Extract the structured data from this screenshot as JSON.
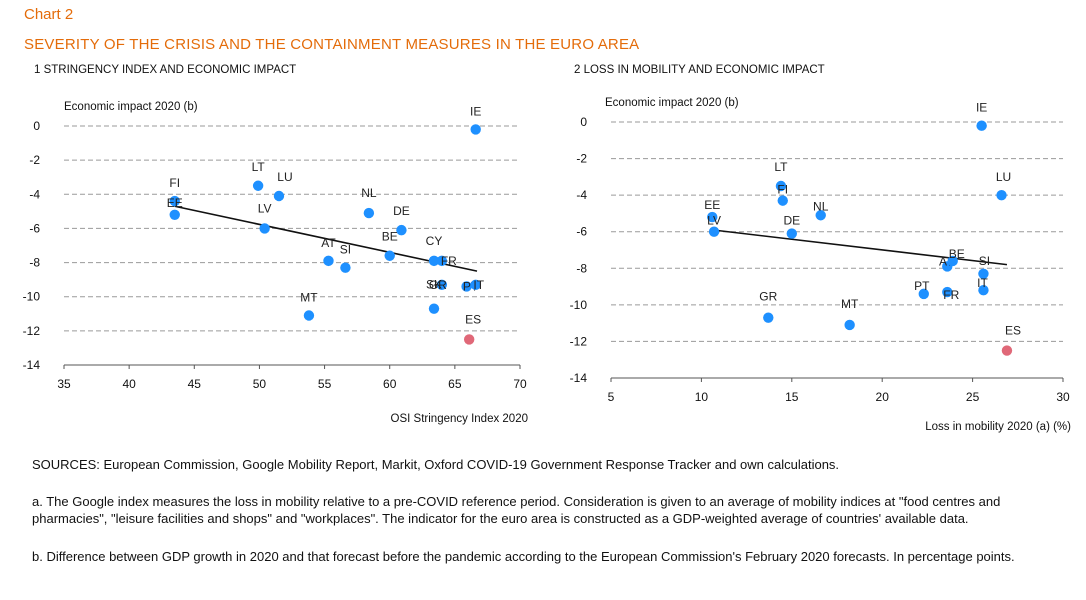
{
  "header": {
    "chart_label": "Chart 2",
    "title": "SEVERITY  OF THE  CRISIS  AND THE CONTAINMENT  MEASURES  IN THE EURO  AREA"
  },
  "colors": {
    "title": "#e46c0a",
    "point": "#1e90ff",
    "highlight": "#e06878",
    "line": "#111111",
    "grid": "#9a9a9a"
  },
  "chart_data": [
    {
      "type": "scatter",
      "panel_title": "1  STRINGENCY INDEX AND ECONOMIC IMPACT",
      "ylabel": "Economic impact 2020  (b)",
      "xlabel": "OSI Stringency  Index 2020",
      "xlim": [
        35,
        70
      ],
      "ylim": [
        -14,
        0
      ],
      "xticks": [
        35,
        40,
        45,
        50,
        55,
        60,
        65,
        70
      ],
      "yticks": [
        0,
        -2,
        -4,
        -6,
        -8,
        -10,
        -12,
        -14
      ],
      "grid": "horizontal-dashed",
      "trendline": {
        "from": [
          43.5,
          -4.7
        ],
        "to": [
          66.7,
          -8.5
        ]
      },
      "points": [
        {
          "label": "IE",
          "x": 66.6,
          "y": -0.2
        },
        {
          "label": "FI",
          "x": 43.5,
          "y": -4.4
        },
        {
          "label": "EE",
          "x": 43.5,
          "y": -5.2
        },
        {
          "label": "LT",
          "x": 49.9,
          "y": -3.5
        },
        {
          "label": "LU",
          "x": 51.5,
          "y": -4.1
        },
        {
          "label": "LV",
          "x": 50.4,
          "y": -6.0
        },
        {
          "label": "NL",
          "x": 58.4,
          "y": -5.1
        },
        {
          "label": "DE",
          "x": 60.9,
          "y": -6.1
        },
        {
          "label": "BE",
          "x": 60.0,
          "y": -7.6
        },
        {
          "label": "AT",
          "x": 55.3,
          "y": -7.9
        },
        {
          "label": "SI",
          "x": 56.6,
          "y": -8.3
        },
        {
          "label": "CY",
          "x": 63.4,
          "y": -7.9
        },
        {
          "label": "FR",
          "x": 64.0,
          "y": -7.9
        },
        {
          "label": "PT",
          "x": 65.9,
          "y": -9.4
        },
        {
          "label": "IT",
          "x": 66.6,
          "y": -9.3
        },
        {
          "label": "GR",
          "x": 64.0,
          "y": -9.3
        },
        {
          "label": "MT",
          "x": 53.8,
          "y": -11.1
        },
        {
          "label": "SK",
          "x": 63.4,
          "y": -10.7
        },
        {
          "label": "ES",
          "x": 66.1,
          "y": -12.5,
          "highlight": true
        }
      ]
    },
    {
      "type": "scatter",
      "panel_title": "2  LOSS IN MOBILITY AND ECONOMIC IMPACT",
      "ylabel": "Economic impact 2020  (b)",
      "xlabel": "Loss in mobility  2020  (a) (%)",
      "xlim": [
        5,
        30
      ],
      "ylim": [
        -14,
        0
      ],
      "xticks": [
        5,
        10,
        15,
        20,
        25,
        30
      ],
      "yticks": [
        0,
        -2,
        -4,
        -6,
        -8,
        -10,
        -12,
        -14
      ],
      "grid": "horizontal-dashed",
      "trendline": {
        "from": [
          10.6,
          -5.9
        ],
        "to": [
          26.9,
          -7.8
        ]
      },
      "points": [
        {
          "label": "IE",
          "x": 25.5,
          "y": -0.2
        },
        {
          "label": "LU",
          "x": 26.6,
          "y": -4.0
        },
        {
          "label": "LT",
          "x": 14.4,
          "y": -3.5
        },
        {
          "label": "FI",
          "x": 14.5,
          "y": -4.3
        },
        {
          "label": "NL",
          "x": 16.6,
          "y": -5.1
        },
        {
          "label": "EE",
          "x": 10.6,
          "y": -5.2
        },
        {
          "label": "LV",
          "x": 10.7,
          "y": -6.0
        },
        {
          "label": "DE",
          "x": 15.0,
          "y": -6.1
        },
        {
          "label": "AT",
          "x": 23.6,
          "y": -7.9
        },
        {
          "label": "BE",
          "x": 23.9,
          "y": -7.6
        },
        {
          "label": "SI",
          "x": 25.6,
          "y": -8.3
        },
        {
          "label": "IT",
          "x": 25.6,
          "y": -9.2
        },
        {
          "label": "PT",
          "x": 22.3,
          "y": -9.4
        },
        {
          "label": "FR",
          "x": 23.6,
          "y": -9.3
        },
        {
          "label": "GR",
          "x": 13.7,
          "y": -10.7
        },
        {
          "label": "MT",
          "x": 18.2,
          "y": -11.1
        },
        {
          "label": "ES",
          "x": 26.9,
          "y": -12.5,
          "highlight": true
        }
      ]
    }
  ],
  "notes": {
    "sources": "SOURCES: European Commission, Google Mobility Report, Markit, Oxford COVID-19 Government  Response Tracker and own calculations.",
    "note_a": "a. The Google index measures the loss in mobility relative to a pre-COVID reference period. Consideration is given to an average of mobility indices at \"food centres and pharmacies\", \"leisure facilities and shops\" and \"workplaces\". The indicator for the euro area is constructed as a GDP-weighted average of countries'  available data.",
    "note_b": "b. Difference between GDP growth in 2020 and that forecast before the pandemic according to the European  Commission's February 2020 forecasts. In percentage points."
  }
}
